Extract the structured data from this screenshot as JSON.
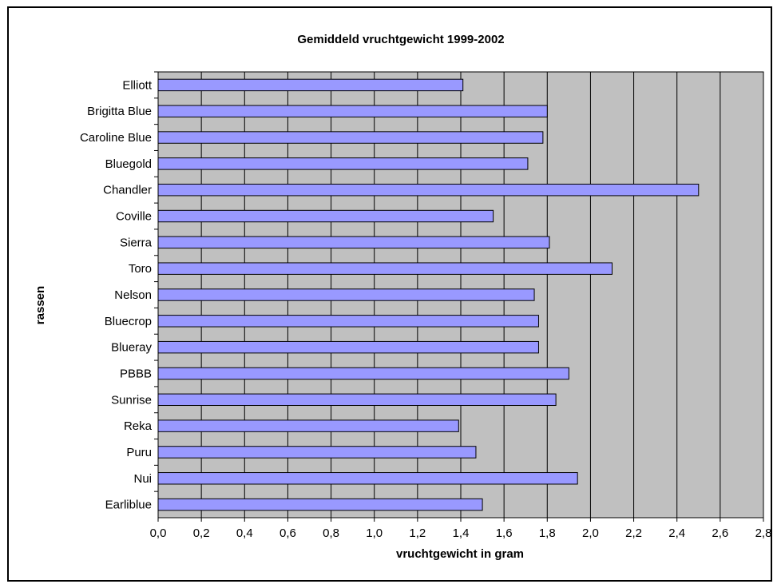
{
  "chart_data": {
    "type": "bar",
    "orientation": "horizontal",
    "title": "Gemiddeld vruchtgewicht 1999-2002",
    "xlabel": "vruchtgewicht in gram",
    "ylabel": "rassen",
    "xlim": [
      0,
      2.8
    ],
    "xticks": [
      "0,0",
      "0,2",
      "0,4",
      "0,6",
      "0,8",
      "1,0",
      "1,2",
      "1,4",
      "1,6",
      "1,8",
      "2,0",
      "2,2",
      "2,4",
      "2,6",
      "2,8"
    ],
    "grid": true,
    "colors": {
      "bar": "#9999ff",
      "plot_bg": "#c0c0c0",
      "grid": "#000000"
    },
    "categories": [
      "Elliott",
      "Brigitta Blue",
      "Caroline Blue",
      "Bluegold",
      "Chandler",
      "Coville",
      "Sierra",
      "Toro",
      "Nelson",
      "Bluecrop",
      "Blueray",
      "PBBB",
      "Sunrise",
      "Reka",
      "Puru",
      "Nui",
      "Earliblue"
    ],
    "values": [
      1.41,
      1.8,
      1.78,
      1.71,
      2.5,
      1.55,
      1.81,
      2.1,
      1.74,
      1.76,
      1.76,
      1.9,
      1.84,
      1.39,
      1.47,
      1.94,
      1.5
    ]
  }
}
